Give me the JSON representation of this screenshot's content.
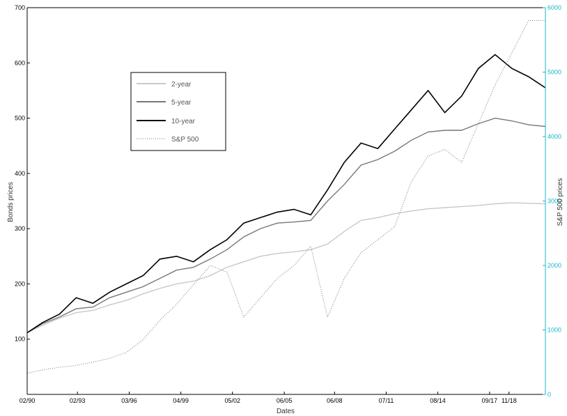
{
  "chart_data": {
    "type": "line",
    "xlabel": "Dates",
    "ylabel_left": "Bonds prices",
    "ylabel_right": "S&P 500 prices",
    "left_axis": {
      "ylim": [
        0,
        700
      ],
      "ticks": [
        100,
        200,
        300,
        400,
        500,
        600,
        700
      ]
    },
    "right_axis": {
      "ylim": [
        0,
        6000
      ],
      "ticks": [
        0,
        1000,
        2000,
        3000,
        4000,
        5000,
        6000
      ],
      "color": "#17b7c7"
    },
    "xlim": [
      1990.08,
      2021.0
    ],
    "x_ticks": [
      {
        "label": "02/90",
        "x": 1990.08
      },
      {
        "label": "02/93",
        "x": 1993.08
      },
      {
        "label": "03/96",
        "x": 1996.17
      },
      {
        "label": "04/99",
        "x": 1999.25
      },
      {
        "label": "05/02",
        "x": 2002.33
      },
      {
        "label": "06/05",
        "x": 2005.42
      },
      {
        "label": "06/08",
        "x": 2008.42
      },
      {
        "label": "07/11",
        "x": 2011.5
      },
      {
        "label": "08/14",
        "x": 2014.58
      },
      {
        "label": "09/17",
        "x": 2017.67
      },
      {
        "label": "11/18",
        "x": 2018.83
      }
    ],
    "legend": {
      "position": "upper-left"
    },
    "series": [
      {
        "name": "2-year",
        "axis": "left",
        "color": "#c8c8c8",
        "style": "solid",
        "x": [
          1990.1,
          1991,
          1992,
          1993,
          1994,
          1995,
          1996,
          1997,
          1998,
          1999,
          2000,
          2001,
          2002,
          2003,
          2004,
          2005,
          2006,
          2007,
          2008,
          2009,
          2010,
          2011,
          2012,
          2013,
          2014,
          2015,
          2016,
          2017,
          2018,
          2019,
          2020,
          2021
        ],
        "values": [
          112,
          125,
          138,
          148,
          152,
          162,
          170,
          182,
          192,
          200,
          205,
          215,
          230,
          240,
          250,
          255,
          258,
          262,
          272,
          295,
          315,
          320,
          327,
          332,
          336,
          338,
          340,
          342,
          345,
          347,
          346,
          345
        ]
      },
      {
        "name": "5-year",
        "axis": "left",
        "color": "#777777",
        "style": "solid",
        "x": [
          1990.1,
          1991,
          1992,
          1993,
          1994,
          1995,
          1996,
          1997,
          1998,
          1999,
          2000,
          2001,
          2002,
          2003,
          2004,
          2005,
          2006,
          2007,
          2008,
          2009,
          2010,
          2011,
          2012,
          2013,
          2014,
          2015,
          2016,
          2017,
          2018,
          2019,
          2020,
          2021
        ],
        "values": [
          112,
          128,
          140,
          155,
          158,
          175,
          185,
          195,
          210,
          225,
          230,
          245,
          262,
          285,
          300,
          310,
          312,
          315,
          350,
          380,
          415,
          425,
          440,
          460,
          475,
          478,
          478,
          490,
          500,
          495,
          488,
          485
        ]
      },
      {
        "name": "10-year",
        "axis": "left",
        "color": "#000000",
        "style": "solid",
        "x": [
          1990.1,
          1991,
          1992,
          1993,
          1994,
          1995,
          1996,
          1997,
          1998,
          1999,
          2000,
          2001,
          2002,
          2003,
          2004,
          2005,
          2006,
          2007,
          2008,
          2009,
          2010,
          2011,
          2012,
          2013,
          2014,
          2015,
          2016,
          2017,
          2018,
          2019,
          2020,
          2021
        ],
        "values": [
          112,
          130,
          145,
          175,
          165,
          185,
          200,
          215,
          245,
          250,
          240,
          262,
          280,
          310,
          320,
          330,
          335,
          325,
          370,
          420,
          455,
          445,
          480,
          515,
          550,
          510,
          540,
          590,
          615,
          590,
          575,
          555
        ]
      },
      {
        "name": "S&P 500",
        "axis": "right",
        "color": "#777777",
        "style": "dotted",
        "x": [
          1990.1,
          1991,
          1992,
          1993,
          1994,
          1995,
          1996,
          1997,
          1998,
          1999,
          2000,
          2001,
          2002,
          2003,
          2004,
          2005,
          2006,
          2007,
          2008,
          2009,
          2010,
          2011,
          2012,
          2013,
          2014,
          2015,
          2016,
          2017,
          2018,
          2019,
          2020,
          2021
        ],
        "values": [
          330,
          380,
          420,
          450,
          500,
          560,
          650,
          850,
          1150,
          1400,
          1700,
          2000,
          1900,
          1200,
          1500,
          1800,
          2000,
          2300,
          1200,
          1800,
          2200,
          2400,
          2600,
          3300,
          3700,
          3800,
          3600,
          4200,
          4800,
          5300,
          5800,
          5800
        ]
      }
    ]
  }
}
